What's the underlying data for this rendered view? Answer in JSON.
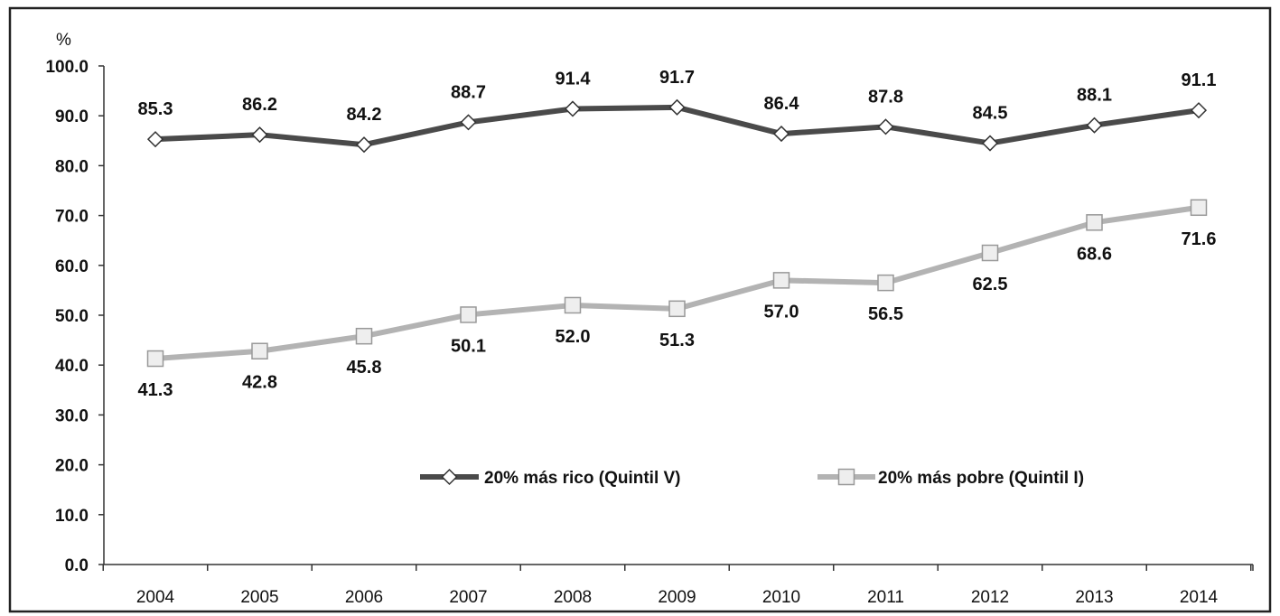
{
  "chart_data": {
    "type": "line",
    "title": "",
    "xlabel": "",
    "ylabel": "%",
    "ylim": [
      0,
      100
    ],
    "yticks": [
      "0.0",
      "10.0",
      "20.0",
      "30.0",
      "40.0",
      "50.0",
      "60.0",
      "70.0",
      "80.0",
      "90.0",
      "100.0"
    ],
    "categories": [
      "2004",
      "2005",
      "2006",
      "2007",
      "2008",
      "2009",
      "2010",
      "2011",
      "2012",
      "2013",
      "2014"
    ],
    "grid": false,
    "legend_position": "center",
    "series": [
      {
        "name": "20% más rico (Quintil V)",
        "values": [
          85.3,
          86.2,
          84.2,
          88.7,
          91.4,
          91.7,
          86.4,
          87.8,
          84.5,
          88.1,
          91.1
        ],
        "labels": [
          "85.3",
          "86.2",
          "84.2",
          "88.7",
          "91.4",
          "91.7",
          "86.4",
          "87.8",
          "84.5",
          "88.1",
          "91.1"
        ],
        "color": "#4a4a4a",
        "marker": "diamond",
        "label_position": "above"
      },
      {
        "name": "20% más pobre (Quintil I)",
        "values": [
          41.3,
          42.8,
          45.8,
          50.1,
          52.0,
          51.3,
          57.0,
          56.5,
          62.5,
          68.6,
          71.6
        ],
        "labels": [
          "41.3",
          "42.8",
          "45.8",
          "50.1",
          "52.0",
          "51.3",
          "57.0",
          "56.5",
          "62.5",
          "68.6",
          "71.6"
        ],
        "color": "#b3b3b3",
        "marker": "square",
        "label_position": "below"
      }
    ]
  }
}
